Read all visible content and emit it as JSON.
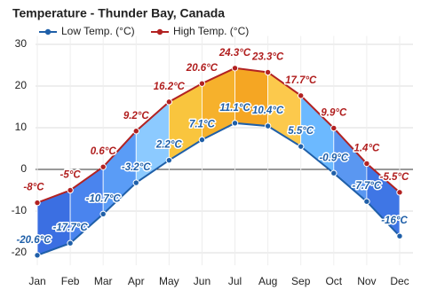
{
  "chart_data": {
    "type": "line",
    "title": "Temperature - Thunder Bay, Canada",
    "categories": [
      "Jan",
      "Feb",
      "Mar",
      "Apr",
      "May",
      "Jun",
      "Jul",
      "Aug",
      "Sep",
      "Oct",
      "Nov",
      "Dec"
    ],
    "series": [
      {
        "name": "Low Temp. (°C)",
        "color": "#1f5fa8",
        "label_color": "#1f5fa8",
        "values": [
          -20.6,
          -17.7,
          -10.7,
          -3.2,
          2.2,
          7.1,
          11.1,
          10.4,
          5.5,
          -0.9,
          -7.7,
          -16
        ],
        "value_labels": [
          "-20.6°C",
          "-17.7°C",
          "-10.7°C",
          "-3.2°C",
          "2.2°C",
          "7.1°C",
          "11.1°C",
          "10.4°C",
          "5.5°C",
          "-0.9°C",
          "-7.7°C",
          "-16°C"
        ]
      },
      {
        "name": "High Temp. (°C)",
        "color": "#b22222",
        "label_color": "#b01e1e",
        "values": [
          -8,
          -5,
          0.6,
          9.2,
          16.2,
          20.6,
          24.3,
          23.3,
          17.7,
          9.9,
          1.4,
          -5.5
        ],
        "value_labels": [
          "-8°C",
          "-5°C",
          "0.6°C",
          "9.2°C",
          "16.2°C",
          "20.6°C",
          "24.3°C",
          "23.3°C",
          "17.7°C",
          "9.9°C",
          "1.4°C",
          "-5.5°C"
        ]
      }
    ],
    "fill_colors": [
      "#3b6fe2",
      "#4a84ee",
      "#5a9cf6",
      "#8ccaff",
      "#f9c53e",
      "#f6b12c",
      "#f5a623",
      "#fcc94c",
      "#6cb9ff",
      "#5a97f1",
      "#3f76e5"
    ],
    "ylim": [
      -23,
      32
    ],
    "yticks": [
      -20,
      -10,
      0,
      10,
      20,
      30
    ],
    "grid": true
  }
}
